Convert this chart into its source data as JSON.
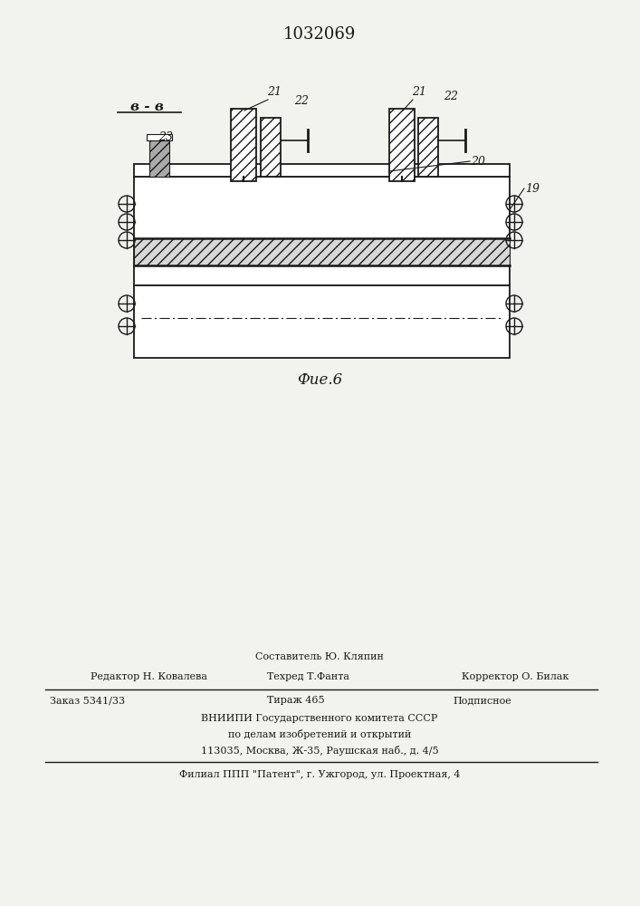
{
  "title": "1032069",
  "fig_label": "Фие.6",
  "section_label": "в - в",
  "bg_color": "#f2f2ee",
  "line_color": "#1a1a1a",
  "bottom_texts": {
    "line1": "Составитель Ю. Кляпин",
    "editor": "Редактор Н. Ковалева",
    "techred": "Техред Т.Фанта",
    "corrector": "Корректор О. Билак",
    "zakaz": "Заказ 5341/33",
    "tirazh": "Тираж 465",
    "podpisnoe": "Подписное",
    "vniipи": "ВНИИПИ Государственного комитета СССР",
    "po_delam": "по делам изобретений и открытий",
    "address": "113035, Москва, Ж-35, Раушская наб., д. 4/5",
    "filial": "Филиал ППП \"Патент\", г. Ужгород, ул. Проектная, 4"
  }
}
